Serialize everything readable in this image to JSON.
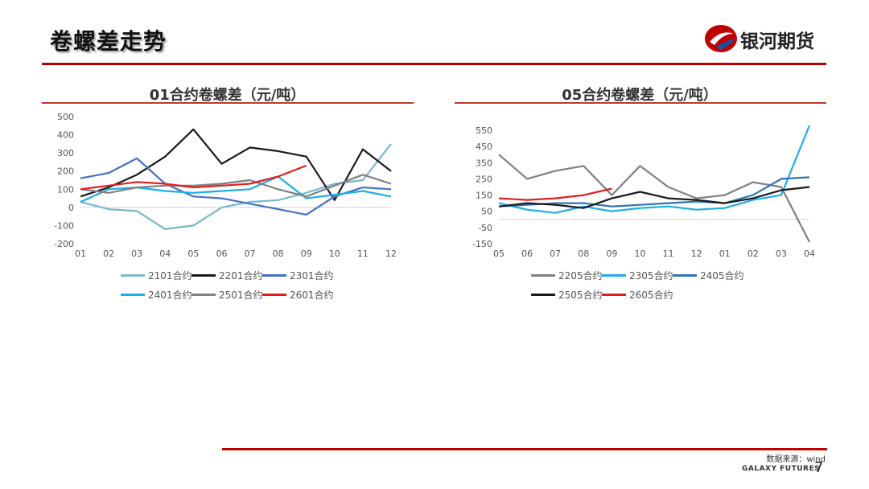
{
  "page": {
    "title": "卷螺差走势",
    "brand": "银河期货",
    "source": "数据来源：wind",
    "brand_en": "GALAXY FUTURES",
    "page_number": "7",
    "accent_color": "#c00000"
  },
  "chart_data": [
    {
      "type": "line",
      "title": "01合约卷螺差（元/吨）",
      "categories": [
        "01",
        "02",
        "03",
        "04",
        "05",
        "06",
        "07",
        "08",
        "09",
        "10",
        "11",
        "12"
      ],
      "yticks": [
        500,
        400,
        300,
        200,
        100,
        0,
        -100,
        -200
      ],
      "ylim": [
        -200,
        500
      ],
      "legend_position": "bottom",
      "series": [
        {
          "name": "2101合约",
          "color": "#79b8cc",
          "values": [
            30,
            -10,
            -20,
            -120,
            -100,
            0,
            30,
            40,
            80,
            130,
            150,
            350
          ]
        },
        {
          "name": "2201合约",
          "color": "#1a1a1a",
          "values": [
            60,
            110,
            180,
            280,
            430,
            240,
            330,
            310,
            280,
            40,
            320,
            200
          ]
        },
        {
          "name": "2301合约",
          "color": "#4472c4",
          "values": [
            160,
            190,
            270,
            130,
            60,
            50,
            20,
            -10,
            -40,
            60,
            110,
            100
          ]
        },
        {
          "name": "2401合约",
          "color": "#1aaee8",
          "values": [
            30,
            100,
            110,
            90,
            80,
            90,
            100,
            170,
            50,
            70,
            90,
            60
          ]
        },
        {
          "name": "2501合约",
          "color": "#808080",
          "values": [
            100,
            80,
            110,
            120,
            120,
            130,
            150,
            100,
            60,
            120,
            180,
            130
          ]
        },
        {
          "name": "2601合约",
          "color": "#e01e1e",
          "values": [
            100,
            120,
            140,
            130,
            110,
            120,
            130,
            170,
            230,
            null,
            null,
            null
          ]
        }
      ]
    },
    {
      "type": "line",
      "title": "05合约卷螺差（元/吨）",
      "categories": [
        "05",
        "06",
        "07",
        "08",
        "09",
        "10",
        "11",
        "12",
        "01",
        "02",
        "03",
        "04"
      ],
      "yticks": [
        550,
        450,
        350,
        250,
        150,
        50,
        -50,
        -150
      ],
      "ylim": [
        -150,
        550
      ],
      "legend_position": "bottom",
      "series": [
        {
          "name": "2205合约",
          "color": "#808080",
          "values": [
            400,
            250,
            300,
            330,
            150,
            330,
            200,
            130,
            150,
            230,
            200,
            -140
          ]
        },
        {
          "name": "2305合约",
          "color": "#1aaee8",
          "values": [
            100,
            60,
            40,
            80,
            50,
            70,
            80,
            60,
            70,
            120,
            150,
            580
          ]
        },
        {
          "name": "2405合约",
          "color": "#2e75b6",
          "values": [
            80,
            90,
            100,
            100,
            80,
            90,
            100,
            110,
            100,
            150,
            250,
            260
          ]
        },
        {
          "name": "2505合约",
          "color": "#1a1a1a",
          "values": [
            80,
            100,
            90,
            70,
            130,
            170,
            130,
            120,
            100,
            130,
            180,
            200
          ]
        },
        {
          "name": "2605合约",
          "color": "#e01e1e",
          "values": [
            130,
            120,
            130,
            150,
            190,
            null,
            null,
            null,
            null,
            null,
            null,
            null
          ]
        }
      ]
    }
  ]
}
